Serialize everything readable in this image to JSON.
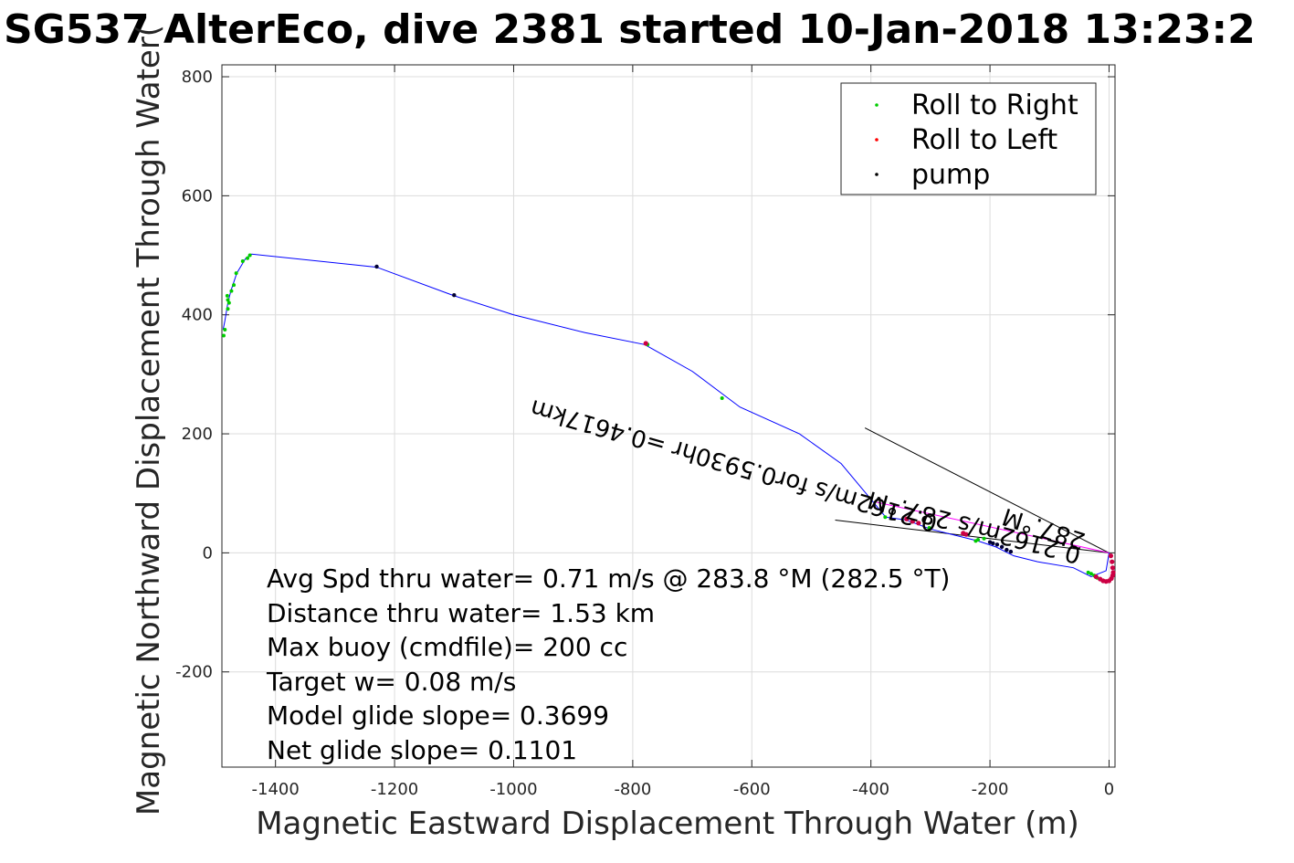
{
  "chart_data": {
    "type": "line",
    "title": "SG537 AlterEco, dive 2381 started 10-Jan-2018 13:23:2",
    "xlabel": "Magnetic Eastward Displacement Through Water (m)",
    "ylabel": "Magnetic Northward Displacement Through Water(",
    "xlim": [
      -1490,
      10
    ],
    "ylim": [
      -360,
      820
    ],
    "xticks": [
      -1400,
      -1200,
      -1000,
      -800,
      -600,
      -400,
      -200,
      0
    ],
    "yticks": [
      -200,
      0,
      200,
      400,
      600,
      800
    ],
    "grid": true,
    "legend_position": "top-right",
    "legend": [
      {
        "label": "Roll to Right",
        "color": "#00cc00"
      },
      {
        "label": "Roll to Left",
        "color": "#ff0000"
      },
      {
        "label": "pump",
        "color": "#000000"
      }
    ],
    "track": {
      "color": "#0000ff",
      "x": [
        0,
        -5,
        -30,
        -60,
        -120,
        -160,
        -190,
        -220,
        -260,
        -300,
        -340,
        -375,
        -400,
        -450,
        -520,
        -620,
        -700,
        -780,
        -880,
        -1000,
        -1100,
        -1230,
        -1440,
        -1450,
        -1465,
        -1475,
        -1480,
        -1485,
        -1488
      ],
      "y": [
        0,
        -30,
        -40,
        -25,
        -15,
        -5,
        10,
        20,
        30,
        40,
        55,
        60,
        90,
        150,
        200,
        245,
        305,
        350,
        370,
        400,
        432,
        480,
        502,
        495,
        470,
        440,
        420,
        390,
        375
      ]
    },
    "roll_right": {
      "x": [
        -1487,
        -1485,
        -1480,
        -1478,
        -1474,
        -1470,
        -1466,
        -1455,
        -1447,
        -1443,
        -1481,
        -1480,
        -775,
        -650,
        -376,
        -302,
        -224,
        -220,
        -210,
        -35,
        -30,
        -25,
        -20
      ],
      "y": [
        365,
        375,
        410,
        420,
        440,
        450,
        470,
        490,
        495,
        500,
        432,
        425,
        350,
        260,
        60,
        42,
        20,
        22,
        24,
        -33,
        -35,
        -38,
        -42
      ]
    },
    "roll_left": {
      "x": [
        -778,
        -340,
        -330,
        -320,
        -245,
        -240,
        3,
        5,
        6,
        7,
        6,
        4,
        0,
        -5,
        -10,
        -15,
        -22
      ],
      "y": [
        352,
        57,
        53,
        50,
        33,
        31,
        -5,
        -15,
        -25,
        -33,
        -38,
        -43,
        -47,
        -48,
        -47,
        -44,
        -40
      ]
    },
    "pump": {
      "x": [
        -1230,
        -1100,
        -200,
        -195,
        -188,
        -180,
        -172,
        -165
      ],
      "y": [
        481,
        433,
        18,
        16,
        14,
        10,
        5,
        2
      ]
    },
    "heading_lines": [
      {
        "x": [
          0,
          -410
        ],
        "y": [
          0,
          210
        ],
        "color": "#000000"
      },
      {
        "x": [
          0,
          -460
        ],
        "y": [
          0,
          55
        ],
        "color": "#000000"
      },
      {
        "x": [
          0,
          -390
        ],
        "y": [
          0,
          85
        ],
        "color": "#ff00ff"
      }
    ],
    "annotations": {
      "rot_a": "0.2162m/s 287.°M",
      "rot_b": "0.2162m/s for0.5930hr =0.4617km",
      "rot_c": "287.°M"
    },
    "text_block": [
      "Avg Spd thru water=  0.71 m/s @ 283.8 °M (282.5 °T)",
      "Distance thru water=  1.53 km",
      "Max buoy (cmdfile)= 200 cc",
      "Target w= 0.08 m/s",
      "Model glide slope= 0.3699",
      "Net glide slope= 0.1101"
    ]
  }
}
